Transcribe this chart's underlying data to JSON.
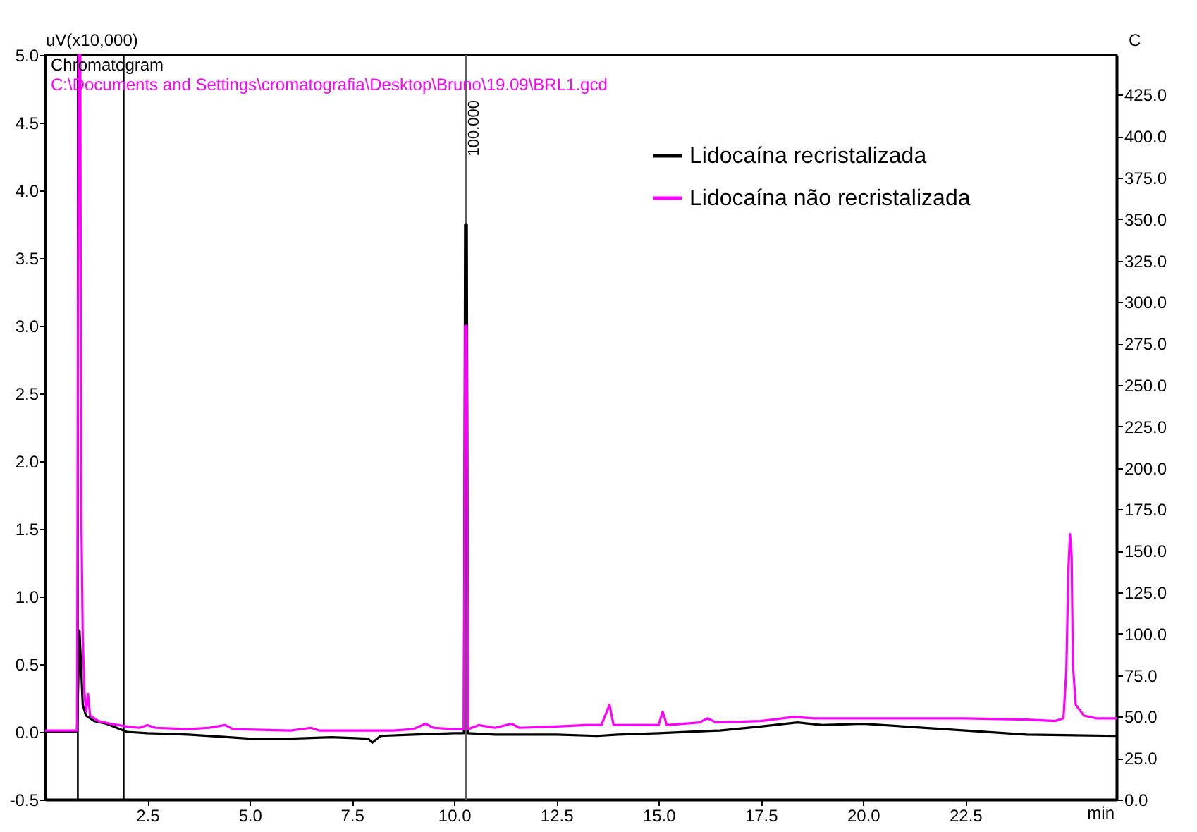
{
  "chart_data": {
    "type": "line",
    "xlabel": "min",
    "ylabel": "uV(x10,000)",
    "y2label": "C",
    "annotations": [
      "Chromatogram",
      "C:\\Documents and Settings\\cromatografia\\Desktop\\Bruno\\19.09\\BRL1.gcd",
      "100.000"
    ],
    "xlim": [
      0,
      26.2
    ],
    "ylim": [
      -0.5,
      5.0
    ],
    "y2lim": [
      0,
      449
    ],
    "xticks": [
      {
        "value": 2.5,
        "label": "2.5"
      },
      {
        "value": 5,
        "label": "5.0"
      },
      {
        "value": 7.5,
        "label": "7.5"
      },
      {
        "value": 10,
        "label": "10.0"
      },
      {
        "value": 12.5,
        "label": "12.5"
      },
      {
        "value": 15,
        "label": "15.0"
      },
      {
        "value": 17.5,
        "label": "17.5"
      },
      {
        "value": 20,
        "label": "20.0"
      },
      {
        "value": 22.5,
        "label": "22.5"
      }
    ],
    "yticks": [
      {
        "value": -0.5,
        "label": "-0.5"
      },
      {
        "value": 0,
        "label": "0.0"
      },
      {
        "value": 0.5,
        "label": "0.5"
      },
      {
        "value": 1,
        "label": "1.0"
      },
      {
        "value": 1.5,
        "label": "1.5"
      },
      {
        "value": 2,
        "label": "2.0"
      },
      {
        "value": 2.5,
        "label": "2.5"
      },
      {
        "value": 3,
        "label": "3.0"
      },
      {
        "value": 3.5,
        "label": "3.5"
      },
      {
        "value": 4,
        "label": "4.0"
      },
      {
        "value": 4.5,
        "label": "4.5"
      },
      {
        "value": 5,
        "label": "5.0"
      }
    ],
    "y2ticks": [
      {
        "value": 0,
        "label": "0.0"
      },
      {
        "value": 25,
        "label": "25.0"
      },
      {
        "value": 50,
        "label": "50.0"
      },
      {
        "value": 75,
        "label": "75.0"
      },
      {
        "value": 100,
        "label": "100.0"
      },
      {
        "value": 125,
        "label": "125.0"
      },
      {
        "value": 150,
        "label": "150.0"
      },
      {
        "value": 175,
        "label": "175.0"
      },
      {
        "value": 200,
        "label": "200.0"
      },
      {
        "value": 225,
        "label": "225.0"
      },
      {
        "value": 250,
        "label": "250.0"
      },
      {
        "value": 275,
        "label": "275.0"
      },
      {
        "value": 300,
        "label": "300.0"
      },
      {
        "value": 325,
        "label": "325.0"
      },
      {
        "value": 350,
        "label": "350.0"
      },
      {
        "value": 375,
        "label": "375.0"
      },
      {
        "value": 400,
        "label": "400.0"
      },
      {
        "value": 425,
        "label": "425.0"
      }
    ],
    "grid": false,
    "legend": "top right",
    "marker": "none",
    "line_style": "solid",
    "ref_lines": [
      {
        "axis": "x",
        "value": 0.8,
        "color": "#000000"
      },
      {
        "axis": "x",
        "value": 1.92,
        "color": "#000000"
      },
      {
        "axis": "x",
        "value": 10.29,
        "color": "#606060"
      }
    ],
    "series": [
      {
        "name": "Lidocaína recristalizada",
        "color": "#000000",
        "x": [
          0,
          0.78,
          0.84,
          0.88,
          0.92,
          1.0,
          1.2,
          1.5,
          2.0,
          2.5,
          3.5,
          4.5,
          5.0,
          6.0,
          7.0,
          7.9,
          8.0,
          8.2,
          9.0,
          10.0,
          10.24,
          10.27,
          10.31,
          10.34,
          11.0,
          12.5,
          13.5,
          14.0,
          15.0,
          16.5,
          17.5,
          18.4,
          19.0,
          20.0,
          21.0,
          22.5,
          24.0,
          26.2
        ],
        "values": [
          0.0,
          0.0,
          0.75,
          0.48,
          0.2,
          0.12,
          0.08,
          0.06,
          0.0,
          -0.01,
          -0.02,
          -0.04,
          -0.05,
          -0.05,
          -0.04,
          -0.05,
          -0.08,
          -0.03,
          -0.02,
          -0.01,
          -0.01,
          3.75,
          3.75,
          -0.01,
          -0.02,
          -0.02,
          -0.03,
          -0.02,
          -0.01,
          0.01,
          0.04,
          0.07,
          0.05,
          0.06,
          0.04,
          0.01,
          -0.02,
          -0.03
        ]
      },
      {
        "name": "Lidocaína não recristalizada",
        "color": "#ff00ff",
        "x": [
          0,
          0.7,
          0.78,
          0.82,
          0.86,
          0.88,
          0.92,
          0.96,
          1.0,
          1.05,
          1.1,
          1.3,
          1.6,
          2.0,
          2.3,
          2.5,
          2.7,
          3.5,
          4.0,
          4.4,
          4.6,
          6.0,
          6.5,
          6.7,
          8.5,
          9.0,
          9.3,
          9.5,
          10.0,
          10.24,
          10.27,
          10.31,
          10.34,
          10.6,
          11.0,
          11.4,
          11.6,
          12.5,
          13.2,
          13.6,
          13.8,
          13.9,
          14.5,
          15.0,
          15.1,
          15.2,
          16.0,
          16.2,
          16.4,
          17.5,
          18.3,
          18.8,
          20.0,
          22.5,
          24.0,
          24.7,
          24.9,
          24.97,
          25.02,
          25.06,
          25.1,
          25.13,
          25.2,
          25.4,
          25.7,
          26.2
        ],
        "values": [
          0.01,
          0.01,
          0.01,
          5.0,
          5.0,
          1.75,
          0.7,
          0.3,
          0.15,
          0.28,
          0.12,
          0.08,
          0.06,
          0.04,
          0.03,
          0.05,
          0.03,
          0.02,
          0.03,
          0.05,
          0.02,
          0.01,
          0.03,
          0.01,
          0.01,
          0.02,
          0.06,
          0.03,
          0.02,
          0.02,
          3.0,
          3.0,
          0.02,
          0.05,
          0.03,
          0.06,
          0.03,
          0.04,
          0.05,
          0.05,
          0.2,
          0.05,
          0.05,
          0.05,
          0.15,
          0.05,
          0.07,
          0.1,
          0.07,
          0.08,
          0.11,
          0.1,
          0.1,
          0.1,
          0.09,
          0.08,
          0.1,
          0.45,
          1.2,
          1.46,
          1.3,
          0.5,
          0.2,
          0.12,
          0.1,
          0.1
        ]
      }
    ]
  }
}
